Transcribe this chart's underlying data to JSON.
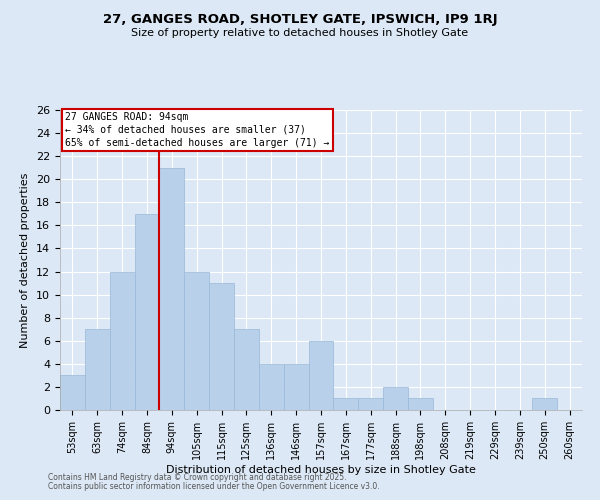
{
  "title_line1": "27, GANGES ROAD, SHOTLEY GATE, IPSWICH, IP9 1RJ",
  "title_line2": "Size of property relative to detached houses in Shotley Gate",
  "xlabel": "Distribution of detached houses by size in Shotley Gate",
  "ylabel": "Number of detached properties",
  "bin_labels": [
    "53sqm",
    "63sqm",
    "74sqm",
    "84sqm",
    "94sqm",
    "105sqm",
    "115sqm",
    "125sqm",
    "136sqm",
    "146sqm",
    "157sqm",
    "167sqm",
    "177sqm",
    "188sqm",
    "198sqm",
    "208sqm",
    "219sqm",
    "229sqm",
    "239sqm",
    "250sqm",
    "260sqm"
  ],
  "bar_heights": [
    3,
    7,
    12,
    17,
    21,
    12,
    11,
    7,
    4,
    4,
    6,
    1,
    1,
    2,
    1,
    0,
    0,
    0,
    0,
    1,
    0
  ],
  "bar_color": "#b8d0ea",
  "bar_edge_color": "#9ab8d8",
  "background_color": "#dce8f5",
  "grid_color": "#ffffff",
  "property_line_color": "#cc0000",
  "property_line_index": 4,
  "annotation_title": "27 GANGES ROAD: 94sqm",
  "annotation_line1": "← 34% of detached houses are smaller (37)",
  "annotation_line2": "65% of semi-detached houses are larger (71) →",
  "annotation_box_color": "#ffffff",
  "annotation_box_edge_color": "#cc0000",
  "ylim": [
    0,
    26
  ],
  "yticks": [
    0,
    2,
    4,
    6,
    8,
    10,
    12,
    14,
    16,
    18,
    20,
    22,
    24,
    26
  ],
  "footer_line1": "Contains HM Land Registry data © Crown copyright and database right 2025.",
  "footer_line2": "Contains public sector information licensed under the Open Government Licence v3.0."
}
